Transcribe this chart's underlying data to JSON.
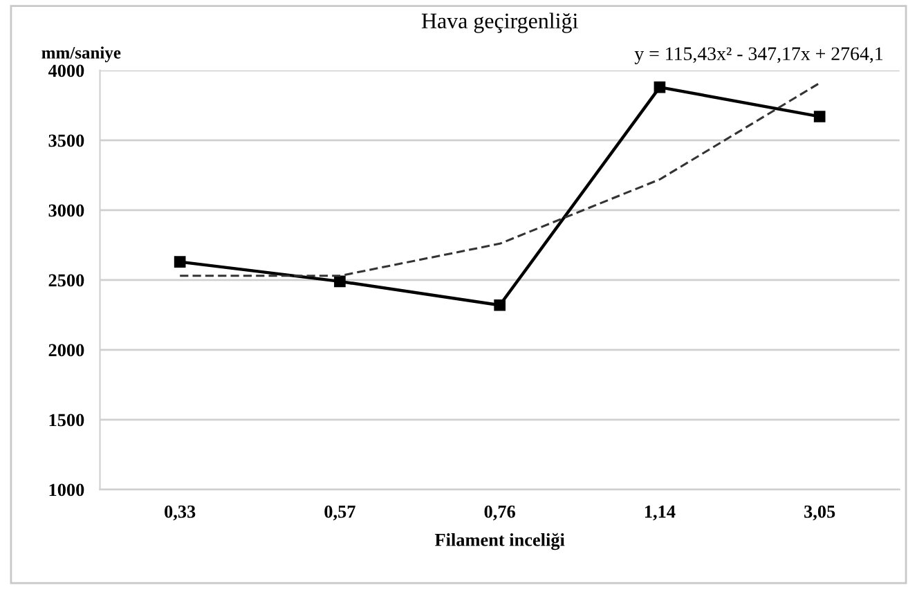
{
  "chart_data": {
    "type": "line",
    "title": "Hava geçirgenliği",
    "ylabel": "mm/saniye",
    "xlabel": "Filament inceliği",
    "categories": [
      "0,33",
      "0,57",
      "0,76",
      "1,14",
      "3,05"
    ],
    "series": [
      {
        "color": "#000000",
        "values": [
          2630,
          2490,
          2320,
          3880,
          3670
        ],
        "marker": "square",
        "line_style": "solid"
      },
      {
        "color": "#333333",
        "x": [
          "0,33",
          "0,57",
          "0,76",
          "1,14",
          "3,05"
        ],
        "values": [
          2530,
          2530,
          2760,
          3220,
          3910
        ],
        "marker": "none",
        "line_style": "dashed"
      }
    ],
    "annotations": [
      "y = 115,43x² - 347,17x + 2764,1"
    ],
    "ylim": [
      1000,
      4000
    ],
    "yticks": [
      1000,
      1500,
      2000,
      2500,
      3000,
      3500,
      4000
    ],
    "grid": "y",
    "legend": false
  }
}
